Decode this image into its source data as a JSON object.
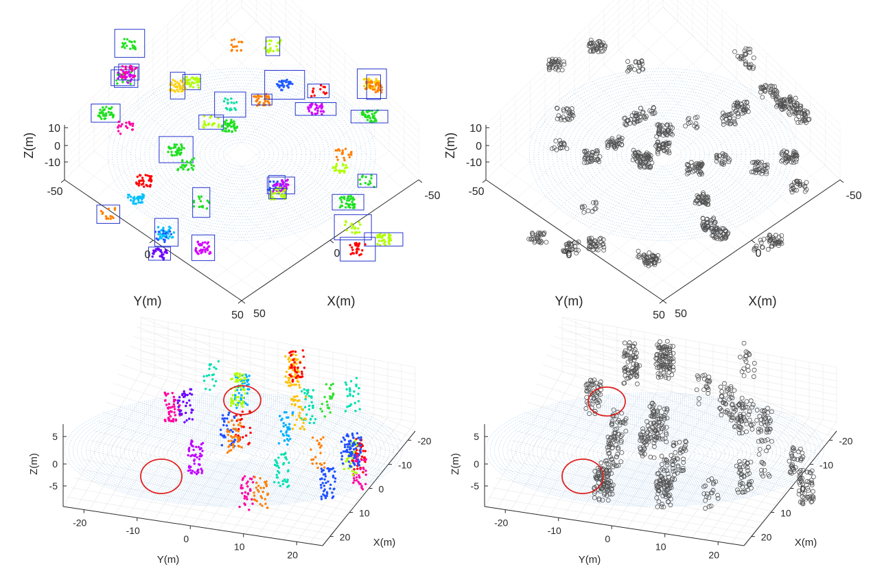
{
  "chart_data": [
    {
      "type": "scatter",
      "view": "top-oblique",
      "colors": "multi-colored clusters with blue bounding boxes",
      "xlabel": "X(m)",
      "ylabel": "Y(m)",
      "zlabel": "Z(m)",
      "x_ticks": [
        "-50",
        "0",
        "50"
      ],
      "y_ticks": [
        "-50",
        "0",
        "50"
      ],
      "z_ticks": [
        "10",
        "0",
        "-10"
      ],
      "xlim": [
        -50,
        50
      ],
      "ylim": [
        -50,
        50
      ],
      "zlim": [
        -10,
        10
      ],
      "grid": true
    },
    {
      "type": "scatter",
      "view": "top-oblique",
      "colors": "gray outliers with few colored clusters",
      "xlabel": "X(m)",
      "ylabel": "Y(m)",
      "zlabel": "Z(m)",
      "x_ticks": [
        "-50",
        "0",
        "50"
      ],
      "y_ticks": [
        "-50",
        "0",
        "50"
      ],
      "z_ticks": [
        "10",
        "0",
        "-10"
      ],
      "xlim": [
        -50,
        50
      ],
      "ylim": [
        -50,
        50
      ],
      "zlim": [
        -10,
        10
      ],
      "grid": true
    },
    {
      "type": "scatter",
      "view": "low-oblique",
      "colors": "multi-colored clusters",
      "xlabel": "X(m)",
      "ylabel": "Y(m)",
      "zlabel": "Z(m)",
      "x_ticks": [
        "-20",
        "-10",
        "0",
        "10",
        "20"
      ],
      "y_ticks": [
        "-20",
        "-10",
        "0",
        "10",
        "20"
      ],
      "z_ticks": [
        "5",
        "0",
        "-5"
      ],
      "xlim": [
        -20,
        20
      ],
      "ylim": [
        -20,
        20
      ],
      "zlim": [
        -5,
        5
      ],
      "grid": true
    },
    {
      "type": "scatter",
      "view": "low-oblique",
      "colors": "gray outliers with few colored clusters",
      "xlabel": "X(m)",
      "ylabel": "Y(m)",
      "zlabel": "Z(m)",
      "x_ticks": [
        "-20",
        "-10",
        "0",
        "10",
        "20"
      ],
      "y_ticks": [
        "-20",
        "-10",
        "0",
        "10",
        "20"
      ],
      "z_ticks": [
        "5",
        "0",
        "-5"
      ],
      "xlim": [
        -20,
        20
      ],
      "ylim": [
        -20,
        20
      ],
      "zlim": [
        -5,
        5
      ],
      "grid": true
    }
  ]
}
